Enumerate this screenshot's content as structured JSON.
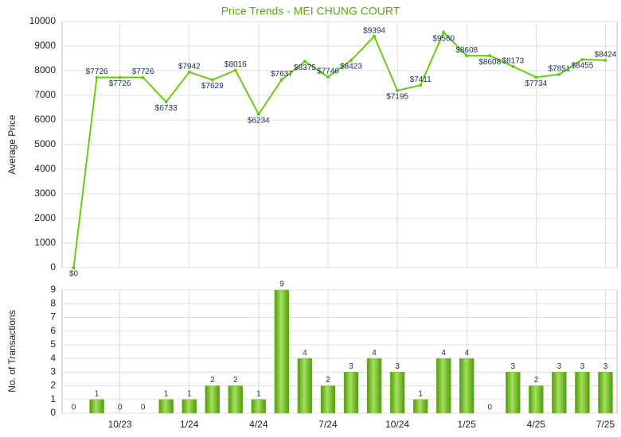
{
  "chart_data": [
    {
      "type": "line",
      "title": "Price Trends - MEI CHUNG COURT",
      "y_label": "Average Price",
      "values": [
        0,
        7726,
        7726,
        7726,
        6733,
        7942,
        7629,
        8016,
        6234,
        7637,
        8375,
        7746,
        8423,
        9394,
        7195,
        7411,
        9560,
        8608,
        8608,
        8173,
        7734,
        7851,
        8455,
        8424
      ],
      "value_labels": [
        "$0",
        "$7726",
        "$7726",
        "$7726",
        "$6733",
        "$7942",
        "$7629",
        "$8016",
        "$6234",
        "$7637",
        "$8375",
        "$7746",
        "$8423",
        "$9394",
        "$7195",
        "$7411",
        "$9560",
        "$8608",
        "$8608",
        "$8173",
        "$7734",
        "$7851",
        "$8455",
        "$8424"
      ],
      "color": "#66cc11",
      "ylim": [
        0,
        10000
      ],
      "yticks": [
        0,
        1000,
        2000,
        3000,
        4000,
        5000,
        6000,
        7000,
        8000,
        9000,
        10000
      ],
      "grid": true
    },
    {
      "type": "bar",
      "y_label": "No. of Transactions",
      "categories": [
        null,
        null,
        "10/23",
        null,
        null,
        "1/24",
        null,
        null,
        "4/24",
        null,
        null,
        "7/24",
        null,
        null,
        "10/24",
        null,
        null,
        "1/25",
        null,
        null,
        "4/25",
        null,
        null,
        "7/25"
      ],
      "values": [
        0,
        1,
        0,
        0,
        1,
        1,
        2,
        2,
        1,
        9,
        4,
        2,
        3,
        4,
        3,
        1,
        4,
        4,
        0,
        3,
        2,
        3,
        3,
        3
      ],
      "color": "#77c322",
      "ylim": [
        0,
        9
      ],
      "yticks": [
        0,
        1,
        2,
        3,
        4,
        5,
        6,
        7,
        8,
        9
      ],
      "grid": true
    }
  ]
}
